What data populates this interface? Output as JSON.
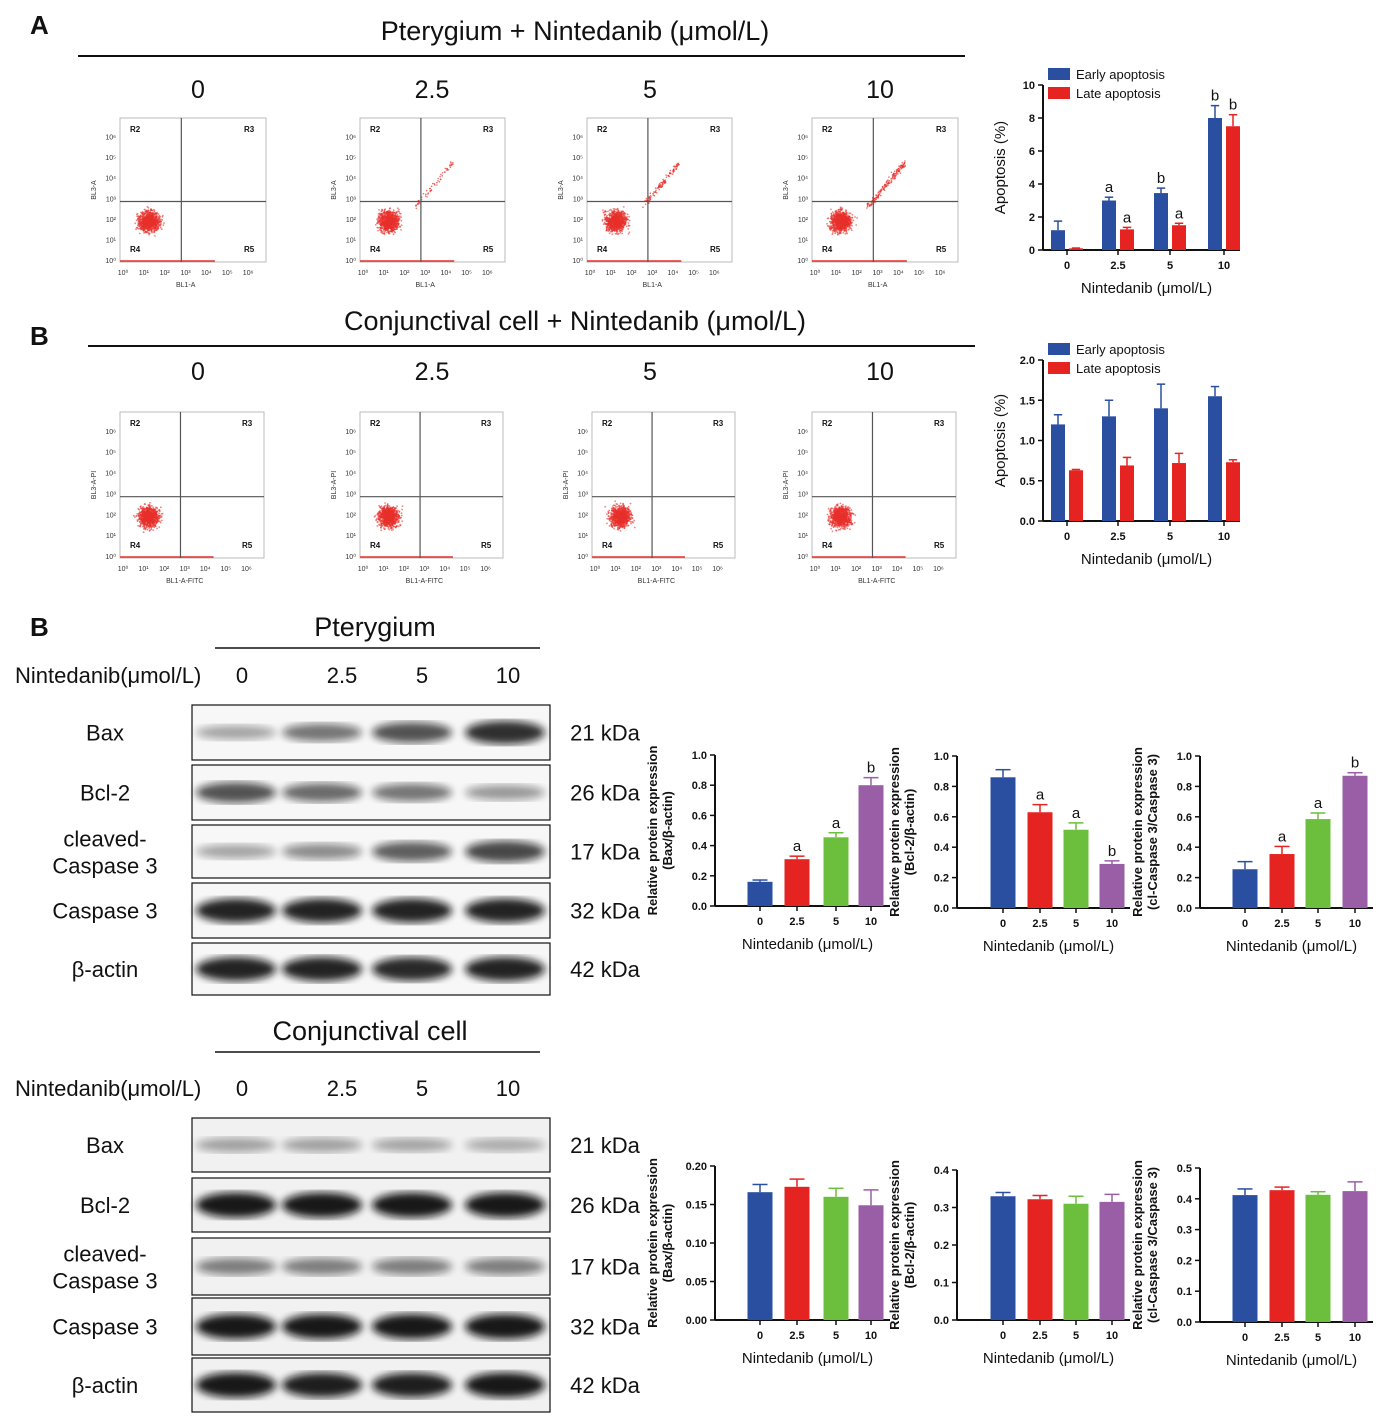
{
  "colors": {
    "blue": "#2a4fa0",
    "red": "#e52421",
    "green": "#6cbf3c",
    "purple": "#9a5ea7",
    "flow_dots": "#e8312b"
  },
  "panelA": {
    "label": "A",
    "title": "Pterygium + Nintedanib (μmol/L)",
    "doses": [
      "0",
      "2.5",
      "5",
      "10"
    ],
    "flow": {
      "y_axis": "BL3-A",
      "x_axis": "BL1-A",
      "quadrants": [
        "R2",
        "R3",
        "R4",
        "R5"
      ],
      "ticks": [
        "10⁰",
        "10¹",
        "10²",
        "10³",
        "10⁴",
        "10⁵",
        "10⁶"
      ]
    }
  },
  "panelB": {
    "label": "B",
    "title": "Conjunctival cell + Nintedanib (μmol/L)",
    "doses": [
      "0",
      "2.5",
      "5",
      "10"
    ],
    "flow": {
      "y_axis": "BL3-A-PI",
      "x_axis": "BL1-A-FITC",
      "quadrants": [
        "R2",
        "R3",
        "R4",
        "R5"
      ],
      "ticks": [
        "10⁰",
        "10¹",
        "10²",
        "10³",
        "10⁴",
        "10⁵",
        "10⁶"
      ]
    }
  },
  "westerns": {
    "label": "B",
    "row_title": "Nintedanib(μmol/L)",
    "doses": [
      "0",
      "2.5",
      "5",
      "10"
    ],
    "groups": [
      {
        "title": "Pterygium",
        "proteins": [
          "Bax",
          "Bcl-2",
          "cleaved-\nCaspase 3",
          "Caspase 3",
          "β-actin"
        ],
        "kda": [
          "21 kDa",
          "26 kDa",
          "17 kDa",
          "32 kDa",
          "42 kDa"
        ]
      },
      {
        "title": "Conjunctival cell",
        "proteins": [
          "Bax",
          "Bcl-2",
          "cleaved-\nCaspase 3",
          "Caspase 3",
          "β-actin"
        ],
        "kda": [
          "21 kDa",
          "26 kDa",
          "17 kDa",
          "32 kDa",
          "42 kDa"
        ]
      }
    ]
  },
  "chart_data": [
    {
      "id": "apopA",
      "type": "bar",
      "categories": [
        "0",
        "2.5",
        "5",
        "10"
      ],
      "xlabel": "Nintedanib (μmol/L)",
      "ylabel": "Apoptosis (%)",
      "ylim": [
        0,
        10
      ],
      "yticks": [
        "0",
        "2",
        "4",
        "6",
        "8",
        "10"
      ],
      "legend": "top-left",
      "series": [
        {
          "name": "Early apoptosis",
          "color": "#2a4fa0",
          "values": [
            1.2,
            3.0,
            3.45,
            8.0
          ],
          "errors": [
            0.55,
            0.2,
            0.3,
            0.75
          ],
          "annotations": [
            "",
            "a",
            "b",
            "b"
          ]
        },
        {
          "name": "Late apoptosis",
          "color": "#e52421",
          "values": [
            0.1,
            1.25,
            1.5,
            7.5
          ],
          "errors": [
            0.02,
            0.12,
            0.12,
            0.7
          ],
          "annotations": [
            "",
            "a",
            "a",
            "b"
          ]
        }
      ]
    },
    {
      "id": "apopB",
      "type": "bar",
      "categories": [
        "0",
        "2.5",
        "5",
        "10"
      ],
      "xlabel": "Nintedanib (μmol/L)",
      "ylabel": "Apoptosis (%)",
      "ylim": [
        0,
        2
      ],
      "yticks": [
        "0.0",
        "0.5",
        "1.0",
        "1.5",
        "2.0"
      ],
      "legend": "top-left",
      "series": [
        {
          "name": "Early apoptosis",
          "color": "#2a4fa0",
          "values": [
            1.2,
            1.3,
            1.4,
            1.55
          ],
          "errors": [
            0.12,
            0.2,
            0.3,
            0.12
          ],
          "annotations": [
            "",
            "",
            "",
            ""
          ]
        },
        {
          "name": "Late apoptosis",
          "color": "#e52421",
          "values": [
            0.63,
            0.69,
            0.72,
            0.73
          ],
          "errors": [
            0.01,
            0.1,
            0.12,
            0.03
          ],
          "annotations": [
            "",
            "",
            "",
            ""
          ]
        }
      ]
    },
    {
      "id": "ptBax",
      "type": "bar",
      "categories": [
        "0",
        "2.5",
        "5",
        "10"
      ],
      "xlabel": "Nintedanib (μmol/L)",
      "ylabel": [
        "Relative protein expression",
        "(Bax/β-actin)"
      ],
      "ylim": [
        0,
        1
      ],
      "yticks": [
        "0.0",
        "0.2",
        "0.4",
        "0.6",
        "0.8",
        "1.0"
      ],
      "series": [
        {
          "name": "Bax/β-actin",
          "colors": [
            "#2a4fa0",
            "#e52421",
            "#6cbf3c",
            "#9a5ea7"
          ],
          "values": [
            0.16,
            0.31,
            0.455,
            0.8
          ],
          "errors": [
            0.012,
            0.02,
            0.03,
            0.05
          ],
          "annotations": [
            "",
            "a",
            "a",
            "b"
          ]
        }
      ]
    },
    {
      "id": "ptBcl",
      "type": "bar",
      "categories": [
        "0",
        "2.5",
        "5",
        "10"
      ],
      "xlabel": "Nintedanib (μmol/L)",
      "ylabel": [
        "Relative protein expression",
        "(Bcl-2/β-actin)"
      ],
      "ylim": [
        0,
        1
      ],
      "yticks": [
        "0.0",
        "0.2",
        "0.4",
        "0.6",
        "0.8",
        "1.0"
      ],
      "series": [
        {
          "name": "Bcl-2/β-actin",
          "colors": [
            "#2a4fa0",
            "#e52421",
            "#6cbf3c",
            "#9a5ea7"
          ],
          "values": [
            0.86,
            0.63,
            0.515,
            0.29
          ],
          "errors": [
            0.05,
            0.05,
            0.045,
            0.02
          ],
          "annotations": [
            "",
            "a",
            "a",
            "b"
          ]
        }
      ]
    },
    {
      "id": "ptCas",
      "type": "bar",
      "categories": [
        "0",
        "2.5",
        "5",
        "10"
      ],
      "xlabel": "Nintedanib (μmol/L)",
      "ylabel": [
        "Relative protein expression",
        "(cl-Caspase 3/Caspase  3)"
      ],
      "ylim": [
        0,
        1
      ],
      "yticks": [
        "0.0",
        "0.2",
        "0.4",
        "0.6",
        "0.8",
        "1.0"
      ],
      "series": [
        {
          "name": "cl-Caspase 3/Caspase 3",
          "colors": [
            "#2a4fa0",
            "#e52421",
            "#6cbf3c",
            "#9a5ea7"
          ],
          "values": [
            0.255,
            0.355,
            0.585,
            0.87
          ],
          "errors": [
            0.05,
            0.05,
            0.04,
            0.02
          ],
          "annotations": [
            "",
            "a",
            "a",
            "b"
          ]
        }
      ]
    },
    {
      "id": "ccBax",
      "type": "bar",
      "categories": [
        "0",
        "2.5",
        "5",
        "10"
      ],
      "xlabel": "Nintedanib (μmol/L)",
      "ylabel": [
        "Relative protein expression",
        "(Bax/β-actin)"
      ],
      "ylim": [
        0,
        0.2
      ],
      "yticks": [
        "0.00",
        "0.05",
        "0.10",
        "0.15",
        "0.20"
      ],
      "series": [
        {
          "name": "Bax/β-actin",
          "colors": [
            "#2a4fa0",
            "#e52421",
            "#6cbf3c",
            "#9a5ea7"
          ],
          "values": [
            0.166,
            0.173,
            0.16,
            0.149
          ],
          "errors": [
            0.01,
            0.01,
            0.011,
            0.02
          ],
          "annotations": [
            "",
            "",
            "",
            ""
          ]
        }
      ]
    },
    {
      "id": "ccBcl",
      "type": "bar",
      "categories": [
        "0",
        "2.5",
        "5",
        "10"
      ],
      "xlabel": "Nintedanib (μmol/L)",
      "ylabel": [
        "Relative protein expression",
        "(Bcl-2/β-actin)"
      ],
      "ylim": [
        0,
        0.4
      ],
      "yticks": [
        "0.0",
        "0.1",
        "0.2",
        "0.3",
        "0.4"
      ],
      "series": [
        {
          "name": "Bcl-2/β-actin",
          "colors": [
            "#2a4fa0",
            "#e52421",
            "#6cbf3c",
            "#9a5ea7"
          ],
          "values": [
            0.33,
            0.322,
            0.31,
            0.315
          ],
          "errors": [
            0.01,
            0.01,
            0.02,
            0.02
          ],
          "annotations": [
            "",
            "",
            "",
            ""
          ]
        }
      ]
    },
    {
      "id": "ccCas",
      "type": "bar",
      "categories": [
        "0",
        "2.5",
        "5",
        "10"
      ],
      "xlabel": "Nintedanib (μmol/L)",
      "ylabel": [
        "Relative protein expression",
        "(cl-Caspase 3/Caspase  3)"
      ],
      "ylim": [
        0,
        0.5
      ],
      "yticks": [
        "0.0",
        "0.1",
        "0.2",
        "0.3",
        "0.4",
        "0.5"
      ],
      "series": [
        {
          "name": "cl-Caspase 3/Caspase 3",
          "colors": [
            "#2a4fa0",
            "#e52421",
            "#6cbf3c",
            "#9a5ea7"
          ],
          "values": [
            0.412,
            0.428,
            0.413,
            0.425
          ],
          "errors": [
            0.02,
            0.01,
            0.01,
            0.03
          ],
          "annotations": [
            "",
            "",
            "",
            ""
          ]
        }
      ]
    }
  ]
}
